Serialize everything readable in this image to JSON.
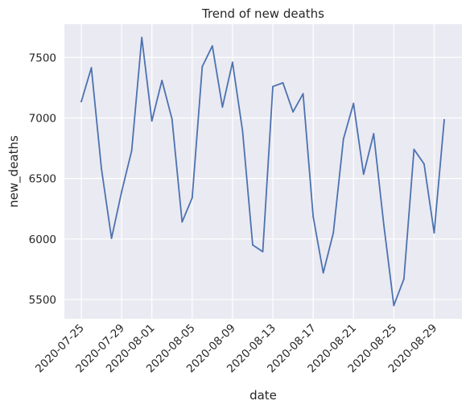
{
  "chart_data": {
    "type": "line",
    "title": "Trend of new deaths",
    "xlabel": "date",
    "ylabel": "new_deaths",
    "grid": true,
    "background": "#eaeaf2",
    "line_color": "#4c72b0",
    "x": [
      "2020-07-25",
      "2020-07-26",
      "2020-07-27",
      "2020-07-28",
      "2020-07-29",
      "2020-07-30",
      "2020-07-31",
      "2020-08-01",
      "2020-08-02",
      "2020-08-03",
      "2020-08-04",
      "2020-08-05",
      "2020-08-06",
      "2020-08-07",
      "2020-08-08",
      "2020-08-09",
      "2020-08-10",
      "2020-08-11",
      "2020-08-12",
      "2020-08-13",
      "2020-08-14",
      "2020-08-15",
      "2020-08-16",
      "2020-08-17",
      "2020-08-18",
      "2020-08-19",
      "2020-08-20",
      "2020-08-21",
      "2020-08-22",
      "2020-08-23",
      "2020-08-24",
      "2020-08-25",
      "2020-08-26",
      "2020-08-27",
      "2020-08-28",
      "2020-08-29",
      "2020-08-30"
    ],
    "values": [
      7135,
      7415,
      6580,
      6005,
      6390,
      6730,
      7665,
      6975,
      7310,
      6990,
      6140,
      6340,
      7425,
      7595,
      7090,
      7460,
      6890,
      5950,
      5895,
      7260,
      7290,
      7050,
      7200,
      6185,
      5720,
      6050,
      6825,
      7120,
      6535,
      6870,
      6120,
      5450,
      5670,
      6740,
      6620,
      6050,
      6985
    ],
    "xticks": [
      "2020-07-25",
      "2020-07-29",
      "2020-08-01",
      "2020-08-05",
      "2020-08-09",
      "2020-08-13",
      "2020-08-17",
      "2020-08-21",
      "2020-08-25",
      "2020-08-29"
    ],
    "yticks": [
      5500,
      6000,
      6500,
      7000,
      7500
    ],
    "ylim": [
      5340,
      7775
    ]
  }
}
